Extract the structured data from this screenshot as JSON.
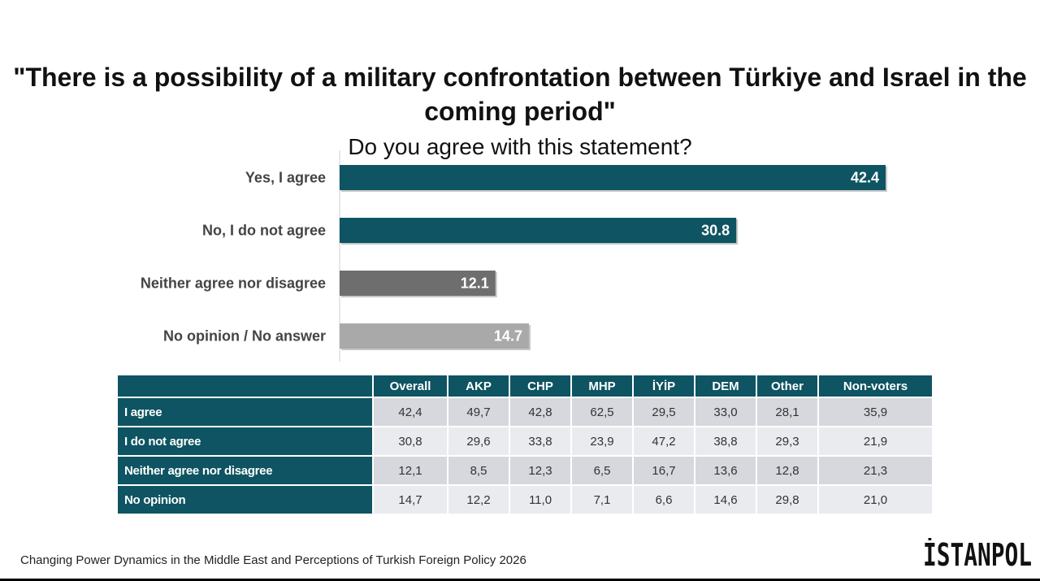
{
  "title": {
    "question": "\"There is a possibility of a military confrontation between Türkiye and Israel in the coming period\"",
    "subtitle": "Do you agree with this statement?"
  },
  "chart_data": {
    "type": "bar",
    "orientation": "horizontal",
    "categories": [
      "Yes, I agree",
      "No, I do not agree",
      "Neither agree nor disagree",
      "No opinion / No answer"
    ],
    "values": [
      42.4,
      30.8,
      12.1,
      14.7
    ],
    "value_labels": [
      "42.4",
      "30.8",
      "12.1",
      "14.7"
    ],
    "colors": [
      "#0e5462",
      "#0e5462",
      "#6e6e6e",
      "#a9a9a9"
    ],
    "xlim": [
      0,
      50
    ],
    "grid": false
  },
  "table": {
    "headers": [
      "Overall",
      "AKP",
      "CHP",
      "MHP",
      "İYİP",
      "DEM",
      "Other",
      "Non-voters"
    ],
    "rows": [
      {
        "label": "I agree",
        "values": [
          "42,4",
          "49,7",
          "42,8",
          "62,5",
          "29,5",
          "33,0",
          "28,1",
          "35,9"
        ]
      },
      {
        "label": "I do not agree",
        "values": [
          "30,8",
          "29,6",
          "33,8",
          "23,9",
          "47,2",
          "38,8",
          "29,3",
          "21,9"
        ]
      },
      {
        "label": "Neither agree nor disagree",
        "values": [
          "12,1",
          "8,5",
          "12,3",
          "6,5",
          "16,7",
          "13,6",
          "12,8",
          "21,3"
        ]
      },
      {
        "label": "No opinion",
        "values": [
          "14,7",
          "12,2",
          "11,0",
          "7,1",
          "6,6",
          "14,6",
          "29,8",
          "21,0"
        ]
      }
    ]
  },
  "footer": {
    "source": "Changing Power Dynamics in the Middle East and Perceptions of Turkish Foreign Policy 2026",
    "logo_text": "İSTANPOL"
  }
}
